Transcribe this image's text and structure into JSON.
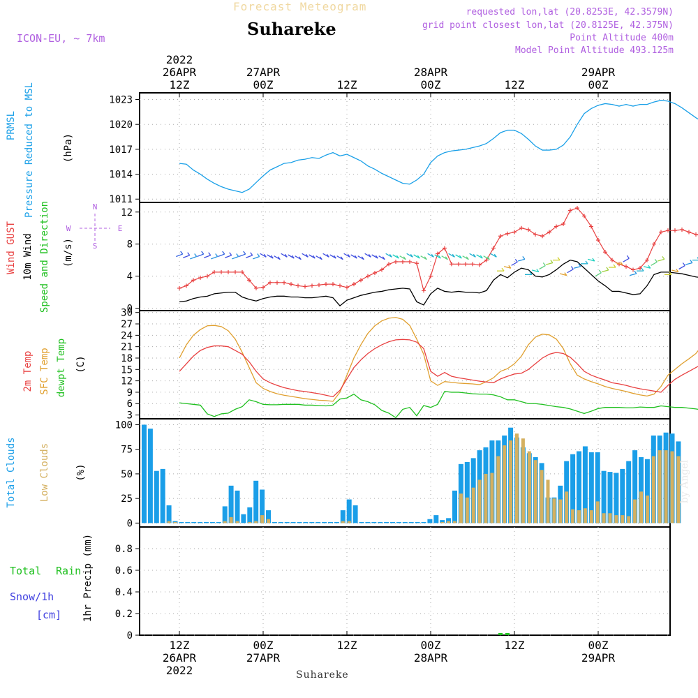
{
  "header": {
    "super_title": "Forecast Meteogram",
    "location": "Suhareke",
    "model": "ICON-EU, ~ 7km",
    "info_lines": [
      "requested lon,lat (20.8253E, 42.3579N)",
      "grid point closest lon,lat (20.8125E, 42.375N)",
      "Point Altitude 400m",
      "Model Point Altitude 493.125m"
    ],
    "bottom_location": "Suhareke",
    "watermark": "by Angel"
  },
  "colors": {
    "pressure": "#1aa0e8",
    "gust": "#e84040",
    "wind": "#000000",
    "temp": "#e84040",
    "sfc_temp": "#e0a030",
    "dewpt": "#20c020",
    "total_clouds": "#1a9ee8",
    "low_clouds": "#d4b060",
    "rain": "#20c020",
    "snow": "#4040e0",
    "compass": "#b060e0"
  },
  "chart_data": [
    {
      "type": "line",
      "panel": "pressure",
      "ylabel": [
        "PRMSL",
        "Pressure Reduced to MSL",
        "(hPa)"
      ],
      "yticks": [
        1011,
        1014,
        1017,
        1020,
        1023
      ],
      "ylim": [
        1010.6,
        1023.8
      ],
      "x_hours": [
        0,
        1,
        2,
        3,
        4,
        5,
        6,
        7,
        8,
        9,
        10,
        11,
        12,
        13,
        14,
        15,
        16,
        17,
        18,
        19,
        20,
        21,
        22,
        23,
        24,
        25,
        26,
        27,
        28,
        29,
        30,
        31,
        32,
        33,
        34,
        35,
        36,
        37,
        38,
        39,
        40,
        41,
        42,
        43,
        44,
        45,
        46,
        47,
        48,
        49,
        50,
        51,
        52,
        53,
        54,
        55,
        56,
        57,
        58,
        59,
        60,
        61,
        62,
        63,
        64,
        65,
        66,
        67,
        68,
        69,
        70,
        71,
        72,
        73,
        74,
        75
      ],
      "series": [
        {
          "values": [
            1015.3,
            1015.2,
            1014.5,
            1014.0,
            1013.4,
            1012.9,
            1012.5,
            1012.2,
            1012.0,
            1011.8,
            1012.2,
            1013.0,
            1013.8,
            1014.5,
            1014.9,
            1015.3,
            1015.4,
            1015.7,
            1015.8,
            1016.0,
            1015.9,
            1016.3,
            1016.6,
            1016.2,
            1016.4,
            1016.0,
            1015.6,
            1015.0,
            1014.6,
            1014.1,
            1013.7,
            1013.3,
            1012.9,
            1012.8,
            1013.3,
            1014.0,
            1015.4,
            1016.2,
            1016.6,
            1016.8,
            1016.9,
            1017.0,
            1017.2,
            1017.4,
            1017.7,
            1018.3,
            1019.0,
            1019.3,
            1019.3,
            1018.9,
            1018.2,
            1017.4,
            1016.9,
            1016.9,
            1017.0,
            1017.5,
            1018.5,
            1020.0,
            1021.3,
            1021.9,
            1022.3,
            1022.5,
            1022.4,
            1022.2,
            1022.4,
            1022.2,
            1022.4,
            1022.4,
            1022.7,
            1022.9,
            1022.8,
            1022.5,
            1022.0,
            1021.4,
            1020.8,
            1020.3
          ]
        }
      ]
    },
    {
      "type": "line",
      "panel": "wind",
      "ylabel": [
        "Wind GUST",
        "10m Wind",
        "Speed and Direction",
        "(m/s)"
      ],
      "yticks": [
        0,
        4,
        8,
        12
      ],
      "ylim": [
        -0.3,
        13.2
      ],
      "compass": {
        "n": "N",
        "e": "E",
        "s": "S",
        "w": "W"
      },
      "series": [
        {
          "name": "Wind GUST",
          "values": [
            2.5,
            2.8,
            3.5,
            3.8,
            4.0,
            4.5,
            4.5,
            4.5,
            4.5,
            4.5,
            3.5,
            2.5,
            2.6,
            3.2,
            3.2,
            3.2,
            3.0,
            2.8,
            2.7,
            2.8,
            2.9,
            3.0,
            3.0,
            2.8,
            2.6,
            3.0,
            3.5,
            4.0,
            4.4,
            4.8,
            5.5,
            5.8,
            5.8,
            5.8,
            5.6,
            2.2,
            4.0,
            6.8,
            7.5,
            5.5,
            5.5,
            5.5,
            5.5,
            5.4,
            6.0,
            7.5,
            9.0,
            9.3,
            9.5,
            10.0,
            9.8,
            9.2,
            9.0,
            9.5,
            10.2,
            10.5,
            12.2,
            12.5,
            11.5,
            10.2,
            8.5,
            7.0,
            6.0,
            5.5,
            5.2,
            4.8,
            5.0,
            6.0,
            8.0,
            9.5,
            9.7,
            9.7,
            9.8,
            9.5,
            9.2,
            9.0
          ]
        },
        {
          "name": "10m Wind",
          "values": [
            0.8,
            0.9,
            1.2,
            1.4,
            1.5,
            1.8,
            1.9,
            2.0,
            2.0,
            1.4,
            1.1,
            0.9,
            1.2,
            1.4,
            1.5,
            1.5,
            1.4,
            1.4,
            1.3,
            1.3,
            1.4,
            1.5,
            1.3,
            0.3,
            1.0,
            1.3,
            1.6,
            1.8,
            2.0,
            2.1,
            2.3,
            2.4,
            2.5,
            2.4,
            0.8,
            0.4,
            1.8,
            2.5,
            2.1,
            2.0,
            2.1,
            2.0,
            2.0,
            1.9,
            2.2,
            3.5,
            4.2,
            3.8,
            4.5,
            5.0,
            4.8,
            4.0,
            3.9,
            4.2,
            4.8,
            5.5,
            6.0,
            5.8,
            5.0,
            4.2,
            3.4,
            2.8,
            2.1,
            2.1,
            1.9,
            1.7,
            1.8,
            2.8,
            4.2,
            4.5,
            4.5,
            4.4,
            4.3,
            4.1,
            3.9,
            3.8
          ]
        }
      ]
    },
    {
      "type": "line",
      "panel": "temperature",
      "ylabel": [
        "2m Temp",
        "SFC Temp",
        "dewpt Temp",
        "(C)"
      ],
      "yticks": [
        3,
        6,
        9,
        12,
        15,
        18,
        21,
        24,
        27,
        30
      ],
      "ylim": [
        2,
        30.5
      ],
      "series": [
        {
          "name": "2m Temp",
          "values": [
            14.5,
            16.5,
            18.5,
            20.0,
            20.8,
            21.2,
            21.2,
            21.0,
            20.0,
            19.0,
            17.0,
            14.5,
            12.5,
            11.5,
            10.8,
            10.2,
            9.8,
            9.4,
            9.2,
            8.9,
            8.6,
            8.2,
            7.8,
            9.5,
            12.5,
            15.5,
            17.5,
            19.2,
            20.5,
            21.5,
            22.3,
            22.8,
            22.9,
            22.8,
            22.2,
            20.5,
            14.5,
            13.2,
            14.2,
            13.2,
            12.8,
            12.5,
            12.2,
            11.9,
            11.7,
            11.5,
            12.5,
            13.2,
            13.8,
            14.0,
            15.0,
            16.5,
            18.0,
            19.0,
            19.5,
            19.2,
            18.2,
            16.5,
            14.5,
            13.5,
            12.8,
            12.2,
            11.5,
            11.2,
            10.8,
            10.3,
            9.9,
            9.6,
            9.3,
            9.0,
            10.8,
            12.4,
            13.5,
            14.5,
            15.5,
            16.5
          ]
        },
        {
          "name": "SFC Temp",
          "values": [
            18.0,
            21.5,
            24.0,
            25.5,
            26.5,
            26.6,
            26.3,
            25.2,
            23.0,
            19.5,
            15.5,
            11.5,
            10.0,
            9.2,
            8.6,
            8.2,
            7.9,
            7.6,
            7.3,
            7.1,
            6.9,
            6.8,
            6.6,
            9.0,
            13.5,
            18.0,
            21.5,
            24.5,
            26.5,
            27.8,
            28.5,
            28.7,
            28.2,
            26.6,
            23.0,
            19.0,
            12.0,
            10.8,
            11.8,
            11.6,
            11.4,
            11.3,
            11.2,
            11.0,
            11.8,
            12.8,
            14.5,
            15.2,
            16.5,
            18.5,
            21.5,
            23.5,
            24.3,
            24.1,
            23.0,
            20.5,
            16.5,
            13.5,
            12.5,
            11.8,
            11.2,
            10.5,
            10.0,
            9.6,
            9.2,
            8.7,
            8.3,
            8.0,
            8.5,
            10.5,
            13.5,
            15.0,
            16.5,
            17.8,
            19.2,
            21.5
          ]
        },
        {
          "name": "dewpt Temp",
          "values": [
            6.2,
            6.0,
            5.8,
            5.6,
            3.3,
            2.6,
            3.3,
            3.5,
            4.5,
            5.2,
            7.0,
            6.5,
            5.8,
            5.7,
            5.7,
            5.8,
            5.8,
            5.8,
            5.6,
            5.6,
            5.5,
            5.4,
            5.6,
            7.2,
            7.5,
            8.5,
            7.0,
            6.5,
            5.7,
            4.2,
            3.5,
            2.3,
            4.5,
            5.0,
            2.8,
            5.5,
            5.0,
            5.8,
            9.2,
            9.0,
            9.0,
            8.8,
            8.6,
            8.5,
            8.5,
            8.3,
            7.8,
            7.0,
            7.0,
            6.5,
            6.0,
            6.0,
            5.8,
            5.5,
            5.2,
            5.0,
            4.6,
            4.0,
            3.4,
            4.0,
            4.7,
            5.0,
            5.0,
            5.0,
            4.9,
            4.9,
            5.1,
            5.0,
            5.0,
            5.4,
            5.2,
            5.0,
            5.0,
            4.8,
            4.6,
            4.3
          ]
        }
      ]
    },
    {
      "type": "bar",
      "panel": "clouds",
      "ylabel": [
        "Total Clouds",
        "Low Clouds",
        "(%)"
      ],
      "yticks": [
        0,
        25,
        50,
        75,
        100
      ],
      "ylim": [
        -4,
        106
      ],
      "series": [
        {
          "name": "Total Clouds",
          "values": [
            100,
            96,
            53,
            55,
            18,
            2,
            1,
            1,
            1,
            1,
            1,
            1,
            1,
            17,
            38,
            33,
            9,
            16,
            43,
            34,
            13,
            1,
            1,
            1,
            1,
            1,
            1,
            1,
            1,
            1,
            1,
            1,
            13,
            24,
            18,
            1,
            1,
            1,
            1,
            1,
            1,
            1,
            1,
            1,
            1,
            1,
            4,
            8,
            3,
            5,
            33,
            60,
            62,
            66,
            74,
            77,
            84,
            84,
            89,
            97,
            87,
            77,
            71,
            67,
            61,
            26,
            26,
            38,
            63,
            70,
            73,
            78,
            72,
            72,
            53,
            52,
            51,
            55,
            63,
            74,
            67,
            65,
            89,
            89,
            92,
            91,
            83
          ]
        },
        {
          "name": "Low Clouds",
          "values": [
            0,
            0,
            0,
            0,
            2,
            1,
            0,
            0,
            0,
            0,
            0,
            0,
            0,
            2,
            6,
            2,
            0,
            1,
            2,
            8,
            4,
            0,
            0,
            0,
            0,
            0,
            0,
            0,
            0,
            0,
            0,
            0,
            2,
            2,
            0,
            0,
            0,
            0,
            0,
            0,
            0,
            0,
            0,
            0,
            0,
            0,
            0,
            0,
            1,
            2,
            2,
            30,
            26,
            36,
            44,
            50,
            51,
            68,
            79,
            84,
            91,
            86,
            73,
            64,
            54,
            44,
            25,
            24,
            32,
            14,
            13,
            15,
            13,
            22,
            10,
            10,
            8,
            8,
            7,
            24,
            32,
            28,
            68,
            74,
            74,
            73,
            68
          ]
        }
      ]
    },
    {
      "type": "bar",
      "panel": "precipitation",
      "ylabel": [
        "1hr Precip (mm)"
      ],
      "legend": [
        "Total",
        "Rain",
        "Snow/1h",
        "[cm]"
      ],
      "yticks": [
        "0",
        "0.2",
        "0.4",
        "0.6",
        "0.8"
      ],
      "ylim": [
        0,
        1.0
      ],
      "series": [
        {
          "name": "Rain",
          "values": [
            0,
            0,
            0,
            0,
            0,
            0,
            0,
            0,
            0,
            0,
            0,
            0,
            0,
            0,
            0,
            0,
            0,
            0,
            0,
            0,
            0,
            0,
            0,
            0,
            0,
            0,
            0,
            0,
            0,
            0,
            0,
            0,
            0,
            0,
            0,
            0,
            0,
            0,
            0,
            0,
            0,
            0,
            0,
            0,
            0,
            0,
            0.005,
            0.01,
            0,
            0,
            0,
            0,
            0,
            0,
            0,
            0,
            0,
            0,
            0,
            0,
            0,
            0,
            0,
            0,
            0,
            0,
            0,
            0,
            0,
            0,
            0,
            0,
            0,
            0,
            0,
            0
          ]
        }
      ]
    }
  ],
  "time_axis": {
    "top_labels": [
      {
        "hour": 0,
        "lines": [
          "2022",
          "26APR",
          "12Z"
        ]
      },
      {
        "hour": 12,
        "lines": [
          "27APR",
          "00Z"
        ]
      },
      {
        "hour": 24,
        "lines": [
          "12Z"
        ]
      },
      {
        "hour": 36,
        "lines": [
          "28APR",
          "00Z"
        ]
      },
      {
        "hour": 48,
        "lines": [
          "12Z"
        ]
      },
      {
        "hour": 60,
        "lines": [
          "29APR",
          "00Z"
        ]
      }
    ],
    "bottom_labels": [
      {
        "hour": 0,
        "lines": [
          "12Z",
          "26APR",
          "2022"
        ]
      },
      {
        "hour": 12,
        "lines": [
          "00Z",
          "27APR"
        ]
      },
      {
        "hour": 24,
        "lines": [
          "12Z"
        ]
      },
      {
        "hour": 36,
        "lines": [
          "00Z",
          "28APR"
        ]
      },
      {
        "hour": 48,
        "lines": [
          "12Z"
        ]
      },
      {
        "hour": 60,
        "lines": [
          "00Z",
          "29APR"
        ]
      }
    ]
  }
}
